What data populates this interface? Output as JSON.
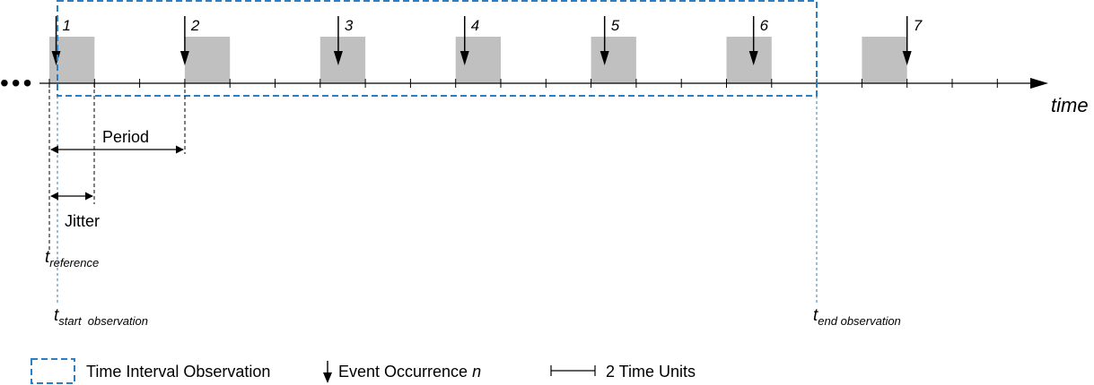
{
  "axis_label": "time",
  "ellipsis": "•••",
  "colors": {
    "box_fill": "#c0c0c0",
    "observation_border": "#2a7ec6",
    "ink": "#000000"
  },
  "events": [
    {
      "n": "1",
      "window_start": 0,
      "window_end": 2,
      "offset": 0.3
    },
    {
      "n": "2",
      "window_start": 6,
      "window_end": 8,
      "offset": 0
    },
    {
      "n": "3",
      "window_start": 12,
      "window_end": 14,
      "offset": 0.8
    },
    {
      "n": "4",
      "window_start": 18,
      "window_end": 20,
      "offset": 0.4
    },
    {
      "n": "5",
      "window_start": 24,
      "window_end": 26,
      "offset": 0.6
    },
    {
      "n": "6",
      "window_start": 30,
      "window_end": 32,
      "offset": 1.2
    },
    {
      "n": "7",
      "window_start": 36,
      "window_end": 38,
      "offset": 2
    }
  ],
  "period_label": "Period",
  "jitter_label": "Jitter",
  "reference": {
    "t": "t",
    "sub": "reference"
  },
  "start_observation": {
    "t": "t",
    "sub": "start  observation"
  },
  "end_observation": {
    "t": "t",
    "sub": "end observation"
  },
  "legend": {
    "interval": "Time Interval Observation",
    "event_text": "Event Occurrence ",
    "event_n": "n",
    "unit": "2 Time Units"
  }
}
